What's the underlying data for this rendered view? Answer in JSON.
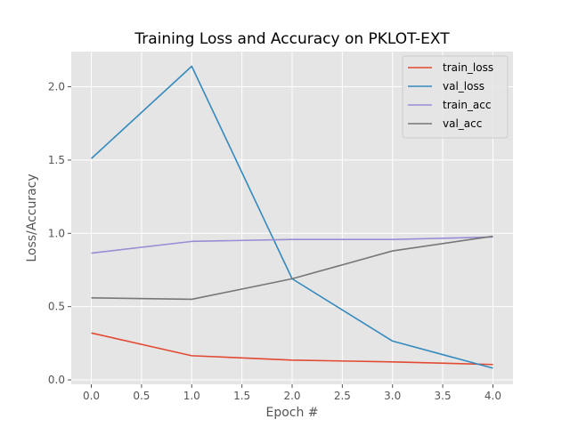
{
  "chart_data": {
    "type": "line",
    "title": "Training Loss and Accuracy on PKLOT-EXT",
    "xlabel": "Epoch #",
    "ylabel": "Loss/Accuracy",
    "x": [
      0,
      1,
      2,
      3,
      4
    ],
    "xlim": [
      -0.2,
      4.2
    ],
    "ylim": [
      -0.03,
      2.24
    ],
    "xticks": [
      0.0,
      0.5,
      1.0,
      1.5,
      2.0,
      2.5,
      3.0,
      3.5,
      4.0
    ],
    "xtick_labels": [
      "0.0",
      "0.5",
      "1.0",
      "1.5",
      "2.0",
      "2.5",
      "3.0",
      "3.5",
      "4.0"
    ],
    "yticks": [
      0.0,
      0.5,
      1.0,
      1.5,
      2.0
    ],
    "ytick_labels": [
      "0.0",
      "0.5",
      "1.0",
      "1.5",
      "2.0"
    ],
    "grid": true,
    "legend_position": "top-right",
    "style": {
      "plot_background": "#e5e5e5",
      "grid_color": "#ffffff"
    },
    "series": [
      {
        "name": "train_loss",
        "color": "#e24a33",
        "values": [
          0.32,
          0.165,
          0.135,
          0.123,
          0.105
        ]
      },
      {
        "name": "val_loss",
        "color": "#348abd",
        "values": [
          1.51,
          2.14,
          0.69,
          0.265,
          0.08
        ]
      },
      {
        "name": "train_acc",
        "color": "#988ed5",
        "values": [
          0.865,
          0.945,
          0.958,
          0.958,
          0.975
        ]
      },
      {
        "name": "val_acc",
        "color": "#777777",
        "values": [
          0.56,
          0.55,
          0.69,
          0.88,
          0.98
        ]
      }
    ]
  }
}
